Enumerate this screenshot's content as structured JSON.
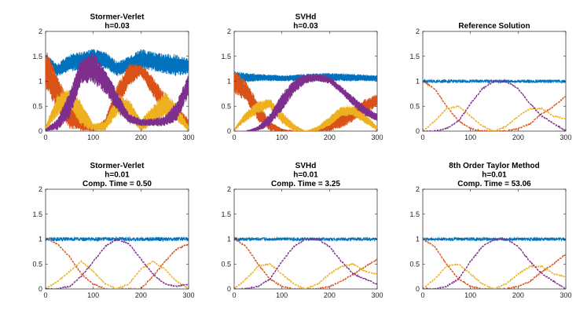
{
  "figure": {
    "colors": {
      "blue": "#0072BD",
      "orange": "#D95319",
      "yellow": "#EDB120",
      "purple": "#7E2F8E"
    }
  },
  "chart_data": [
    {
      "type": "line",
      "title": [
        "Stormer-Verlet",
        "h=0.03"
      ],
      "xlim": [
        0,
        300
      ],
      "ylim": [
        0,
        2
      ],
      "xticks": [
        "0",
        "100",
        "200",
        "300"
      ],
      "yticks": [
        "0",
        "0.5",
        "1",
        "1.5",
        "2"
      ],
      "series": [
        {
          "color": "blue",
          "style": "band",
          "x": [
            0,
            25,
            50,
            75,
            100,
            125,
            150,
            175,
            200,
            225,
            250,
            275,
            300
          ],
          "low": [
            1.3,
            1.1,
            1.2,
            1.2,
            1.35,
            1.25,
            1.1,
            1.15,
            1.25,
            1.2,
            1.15,
            1.1,
            1.15
          ],
          "high": [
            1.55,
            1.35,
            1.55,
            1.6,
            1.65,
            1.6,
            1.4,
            1.5,
            1.65,
            1.6,
            1.55,
            1.55,
            1.45
          ]
        },
        {
          "color": "orange",
          "style": "band",
          "x": [
            0,
            25,
            50,
            75,
            100,
            125,
            150,
            175,
            200,
            225,
            250,
            275,
            300
          ],
          "low": [
            0.85,
            0.4,
            0.05,
            0.0,
            0.0,
            0.05,
            0.4,
            0.9,
            1.1,
            0.7,
            0.3,
            0.3,
            0.0
          ],
          "high": [
            1.65,
            1.15,
            0.55,
            0.3,
            0.05,
            0.25,
            0.95,
            1.35,
            1.35,
            1.1,
            0.75,
            0.5,
            0.25
          ]
        },
        {
          "color": "yellow",
          "style": "band",
          "x": [
            0,
            25,
            50,
            75,
            100,
            125,
            150,
            175,
            200,
            225,
            250,
            275,
            300
          ],
          "low": [
            0.0,
            0.3,
            0.5,
            0.1,
            0.0,
            0.0,
            0.3,
            0.25,
            0.0,
            0.1,
            0.3,
            0.2,
            0.0
          ],
          "high": [
            0.1,
            0.75,
            0.85,
            0.6,
            0.15,
            0.2,
            0.75,
            0.65,
            0.25,
            0.5,
            0.8,
            0.55,
            0.1
          ]
        },
        {
          "color": "purple",
          "style": "band",
          "x": [
            0,
            25,
            50,
            75,
            100,
            125,
            150,
            175,
            200,
            225,
            250,
            275,
            300
          ],
          "low": [
            0.0,
            0.02,
            0.25,
            0.95,
            0.95,
            0.75,
            0.4,
            0.15,
            0.1,
            0.1,
            0.1,
            0.2,
            0.7
          ],
          "high": [
            0.05,
            0.25,
            0.8,
            1.45,
            1.6,
            1.25,
            0.8,
            0.35,
            0.25,
            0.25,
            0.3,
            0.6,
            1.15
          ]
        }
      ]
    },
    {
      "type": "line",
      "title": [
        "SVHd",
        "h=0.03"
      ],
      "xlim": [
        0,
        300
      ],
      "ylim": [
        0,
        2
      ],
      "xticks": [
        "0",
        "100",
        "200",
        "300"
      ],
      "yticks": [
        "0",
        "0.5",
        "1",
        "1.5",
        "2"
      ],
      "series": [
        {
          "color": "blue",
          "style": "band",
          "x": [
            0,
            50,
            100,
            150,
            200,
            250,
            300
          ],
          "low": [
            0.95,
            1.0,
            1.0,
            1.0,
            1.0,
            1.0,
            1.0
          ],
          "high": [
            1.2,
            1.15,
            1.12,
            1.15,
            1.17,
            1.15,
            1.12
          ]
        },
        {
          "color": "orange",
          "style": "band",
          "x": [
            0,
            25,
            50,
            75,
            100,
            125,
            150,
            175,
            200,
            225,
            250,
            275,
            300
          ],
          "low": [
            0.75,
            0.6,
            0.2,
            0.0,
            0.0,
            0.0,
            0.0,
            0.0,
            0.0,
            0.05,
            0.2,
            0.35,
            0.5
          ],
          "high": [
            1.25,
            1.0,
            0.6,
            0.2,
            0.05,
            0.0,
            0.0,
            0.05,
            0.15,
            0.35,
            0.5,
            0.65,
            0.75
          ]
        },
        {
          "color": "yellow",
          "style": "band",
          "x": [
            0,
            25,
            50,
            75,
            100,
            125,
            150,
            175,
            200,
            225,
            250,
            275,
            300
          ],
          "low": [
            0.0,
            0.2,
            0.35,
            0.45,
            0.15,
            0.0,
            0.0,
            0.0,
            0.1,
            0.3,
            0.3,
            0.15,
            0.0
          ],
          "high": [
            0.05,
            0.4,
            0.6,
            0.65,
            0.4,
            0.15,
            0.0,
            0.1,
            0.3,
            0.5,
            0.5,
            0.35,
            0.1
          ]
        },
        {
          "color": "purple",
          "style": "band",
          "x": [
            0,
            25,
            50,
            75,
            100,
            125,
            150,
            175,
            200,
            225,
            250,
            275,
            300
          ],
          "low": [
            0.0,
            0.0,
            0.0,
            0.1,
            0.4,
            0.75,
            0.95,
            1.0,
            0.95,
            0.75,
            0.5,
            0.3,
            0.2
          ],
          "high": [
            0.0,
            0.0,
            0.1,
            0.35,
            0.75,
            1.05,
            1.15,
            1.15,
            1.1,
            0.9,
            0.7,
            0.5,
            0.35
          ]
        }
      ]
    },
    {
      "type": "line",
      "title": [
        "Reference Solution"
      ],
      "xlim": [
        0,
        300
      ],
      "ylim": [
        0,
        2
      ],
      "xticks": [
        "0",
        "100",
        "200",
        "300"
      ],
      "yticks": [
        "0",
        "0.5",
        "1",
        "1.5",
        "2"
      ],
      "series": [
        {
          "color": "blue",
          "style": "noisy",
          "x": [
            0,
            300
          ],
          "y": [
            1.0,
            1.0
          ],
          "amp": 0.035
        },
        {
          "color": "orange",
          "style": "line",
          "x": [
            0,
            25,
            50,
            75,
            100,
            125,
            150,
            175,
            200,
            225,
            250,
            275,
            300
          ],
          "y": [
            1.0,
            0.85,
            0.5,
            0.2,
            0.05,
            0.0,
            0.0,
            0.0,
            0.05,
            0.15,
            0.35,
            0.5,
            0.7
          ]
        },
        {
          "color": "yellow",
          "style": "line",
          "x": [
            0,
            25,
            50,
            75,
            100,
            125,
            150,
            175,
            200,
            225,
            250,
            275,
            300
          ],
          "y": [
            0.0,
            0.2,
            0.45,
            0.5,
            0.3,
            0.1,
            0.0,
            0.1,
            0.3,
            0.45,
            0.45,
            0.3,
            0.25
          ]
        },
        {
          "color": "purple",
          "style": "line",
          "x": [
            0,
            25,
            50,
            75,
            100,
            125,
            150,
            175,
            200,
            225,
            250,
            275,
            300
          ],
          "y": [
            0.0,
            0.0,
            0.05,
            0.2,
            0.55,
            0.85,
            1.0,
            1.0,
            0.85,
            0.55,
            0.3,
            0.15,
            0.0
          ]
        }
      ]
    },
    {
      "type": "line",
      "title": [
        "Stormer-Verlet",
        "h=0.01",
        "Comp. Time = 0.50"
      ],
      "xlim": [
        0,
        300
      ],
      "ylim": [
        0,
        2
      ],
      "xticks": [
        "0",
        "100",
        "200",
        "300"
      ],
      "yticks": [
        "0",
        "0.5",
        "1",
        "1.5",
        "2"
      ],
      "series": [
        {
          "color": "blue",
          "style": "noisy",
          "x": [
            0,
            300
          ],
          "y": [
            1.0,
            1.0
          ],
          "amp": 0.04
        },
        {
          "color": "orange",
          "style": "line",
          "x": [
            0,
            25,
            50,
            75,
            100,
            125,
            150,
            175,
            200,
            225,
            250,
            275,
            300
          ],
          "y": [
            1.02,
            0.9,
            0.65,
            0.3,
            0.1,
            0.0,
            0.0,
            0.0,
            0.0,
            0.25,
            0.55,
            0.8,
            0.9
          ]
        },
        {
          "color": "yellow",
          "style": "line",
          "x": [
            0,
            25,
            50,
            75,
            100,
            125,
            150,
            175,
            200,
            225,
            250,
            275,
            300
          ],
          "y": [
            0.0,
            0.15,
            0.35,
            0.55,
            0.35,
            0.1,
            0.0,
            0.1,
            0.4,
            0.55,
            0.4,
            0.15,
            0.0
          ]
        },
        {
          "color": "purple",
          "style": "line",
          "x": [
            0,
            25,
            50,
            75,
            100,
            125,
            150,
            175,
            200,
            225,
            250,
            275,
            300
          ],
          "y": [
            0.0,
            0.0,
            0.05,
            0.25,
            0.55,
            0.85,
            1.0,
            0.9,
            0.6,
            0.3,
            0.1,
            0.05,
            0.1
          ]
        }
      ]
    },
    {
      "type": "line",
      "title": [
        "SVHd",
        "h=0.01",
        "Comp. Time = 3.25"
      ],
      "xlim": [
        0,
        300
      ],
      "ylim": [
        0,
        2
      ],
      "xticks": [
        "0",
        "100",
        "200",
        "300"
      ],
      "yticks": [
        "0",
        "0.5",
        "1",
        "1.5",
        "2"
      ],
      "series": [
        {
          "color": "blue",
          "style": "noisy",
          "x": [
            0,
            300
          ],
          "y": [
            1.0,
            1.0
          ],
          "amp": 0.035
        },
        {
          "color": "orange",
          "style": "line",
          "x": [
            0,
            25,
            50,
            75,
            100,
            125,
            150,
            175,
            200,
            225,
            250,
            275,
            300
          ],
          "y": [
            1.0,
            0.85,
            0.5,
            0.2,
            0.05,
            0.0,
            0.0,
            0.0,
            0.05,
            0.15,
            0.3,
            0.45,
            0.6
          ]
        },
        {
          "color": "yellow",
          "style": "line",
          "x": [
            0,
            25,
            50,
            75,
            100,
            125,
            150,
            175,
            200,
            225,
            250,
            275,
            300
          ],
          "y": [
            0.0,
            0.2,
            0.45,
            0.5,
            0.3,
            0.1,
            0.0,
            0.1,
            0.3,
            0.45,
            0.5,
            0.35,
            0.3
          ]
        },
        {
          "color": "purple",
          "style": "line",
          "x": [
            0,
            25,
            50,
            75,
            100,
            125,
            150,
            175,
            200,
            225,
            250,
            275,
            300
          ],
          "y": [
            0.0,
            0.0,
            0.05,
            0.2,
            0.55,
            0.85,
            1.0,
            1.0,
            0.85,
            0.55,
            0.3,
            0.2,
            0.1
          ]
        }
      ]
    },
    {
      "type": "line",
      "title": [
        "8th Order Taylor Method",
        "h=0.01",
        "Comp. Time = 53.06"
      ],
      "xlim": [
        0,
        300
      ],
      "ylim": [
        0,
        2
      ],
      "xticks": [
        "0",
        "100",
        "200",
        "300"
      ],
      "yticks": [
        "0",
        "0.5",
        "1",
        "1.5",
        "2"
      ],
      "series": [
        {
          "color": "blue",
          "style": "noisy",
          "x": [
            0,
            300
          ],
          "y": [
            1.0,
            1.0
          ],
          "amp": 0.035
        },
        {
          "color": "orange",
          "style": "line",
          "x": [
            0,
            25,
            50,
            75,
            100,
            125,
            150,
            175,
            200,
            225,
            250,
            275,
            300
          ],
          "y": [
            1.0,
            0.85,
            0.5,
            0.2,
            0.05,
            0.0,
            0.0,
            0.0,
            0.05,
            0.15,
            0.35,
            0.5,
            0.7
          ]
        },
        {
          "color": "yellow",
          "style": "line",
          "x": [
            0,
            25,
            50,
            75,
            100,
            125,
            150,
            175,
            200,
            225,
            250,
            275,
            300
          ],
          "y": [
            0.0,
            0.2,
            0.45,
            0.5,
            0.3,
            0.1,
            0.0,
            0.1,
            0.3,
            0.45,
            0.45,
            0.3,
            0.25
          ]
        },
        {
          "color": "purple",
          "style": "line",
          "x": [
            0,
            25,
            50,
            75,
            100,
            125,
            150,
            175,
            200,
            225,
            250,
            275,
            300
          ],
          "y": [
            0.0,
            0.0,
            0.05,
            0.2,
            0.55,
            0.85,
            1.0,
            1.0,
            0.85,
            0.55,
            0.3,
            0.15,
            0.0
          ]
        }
      ]
    }
  ]
}
